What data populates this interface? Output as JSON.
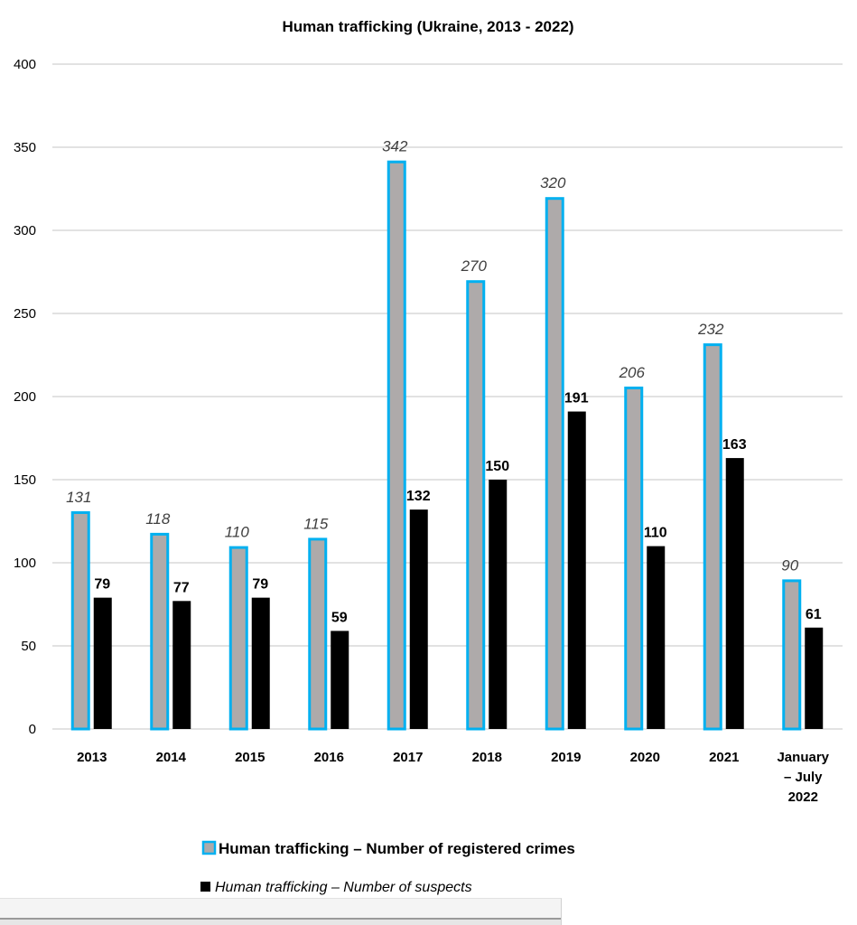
{
  "chart_data": {
    "type": "bar",
    "title": "Human trafficking (Ukraine, 2013 - 2022)",
    "xlabel": "",
    "ylabel": "",
    "ylim": [
      0,
      400
    ],
    "yticks": [
      0,
      50,
      100,
      150,
      200,
      250,
      300,
      350,
      400
    ],
    "grid": true,
    "legend_position": "bottom",
    "categories": [
      [
        "2013"
      ],
      [
        "2014"
      ],
      [
        "2015"
      ],
      [
        "2016"
      ],
      [
        "2017"
      ],
      [
        "2018"
      ],
      [
        "2019"
      ],
      [
        "2020"
      ],
      [
        "2021"
      ],
      [
        "January",
        "– July",
        "2022"
      ]
    ],
    "series": [
      {
        "name": "Human trafficking – Number of registered crimes",
        "values": [
          131,
          118,
          110,
          115,
          342,
          270,
          320,
          206,
          232,
          90
        ],
        "fill": "#AEAAAA",
        "border": "#00B0F0",
        "label_style": "italic"
      },
      {
        "name": "Human trafficking – Number of suspects",
        "values": [
          79,
          77,
          79,
          59,
          132,
          150,
          191,
          110,
          163,
          61
        ],
        "fill": "#000000",
        "border": "none",
        "label_style": "bold"
      }
    ]
  }
}
